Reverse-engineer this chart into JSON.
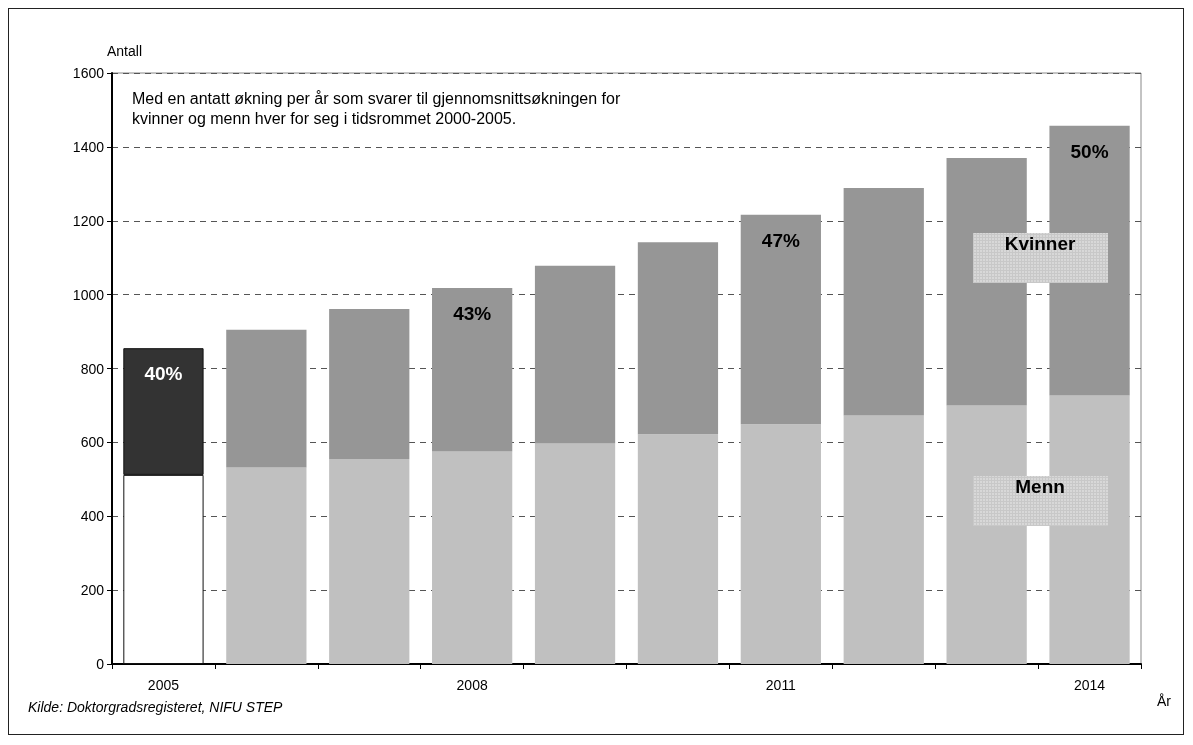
{
  "chart_data": {
    "type": "bar",
    "stacked": true,
    "categories": [
      "2005",
      null,
      null,
      "2008",
      null,
      null,
      "2011",
      null,
      null,
      "2014"
    ],
    "series": [
      {
        "name": "Menn",
        "colors": [
          "#ffffff",
          "#c0c0c0",
          "#c0c0c0",
          "#c0c0c0",
          "#c0c0c0",
          "#c0c0c0",
          "#c0c0c0",
          "#c0c0c0",
          "#c0c0c0",
          "#c0c0c0"
        ],
        "values": [
          512,
          532,
          555,
          575,
          597,
          622,
          649,
          673,
          700,
          727
        ]
      },
      {
        "name": "Kvinner",
        "colors": [
          "#333333",
          "#969696",
          "#969696",
          "#969696",
          "#969696",
          "#969696",
          "#969696",
          "#969696",
          "#969696",
          "#969696"
        ],
        "values": [
          343,
          373,
          406,
          443,
          481,
          520,
          567,
          616,
          670,
          730
        ]
      }
    ],
    "ylim": [
      0,
      1600
    ],
    "yticks": [
      0,
      200,
      400,
      600,
      800,
      1000,
      1200,
      1400,
      1600
    ],
    "ylabel": "Antall",
    "xlabel": "År",
    "grid": "y",
    "legend": "right",
    "annotations": [
      {
        "text": "40%",
        "x": "2005",
        "y": 855
      },
      {
        "text": "43%",
        "x": "2008",
        "y": 1018
      },
      {
        "text": "47%",
        "x": "2011",
        "y": 1216
      },
      {
        "text": "50%",
        "x": "2014",
        "y": 1457
      },
      "Med en antatt økning per år som svarer til gjennomsnittsøkningen for\nkvinner og menn hver for seg i tidsrommet 2000-2005.",
      "Kilde: Doktorgradsregisteret, NIFU STEP"
    ]
  }
}
